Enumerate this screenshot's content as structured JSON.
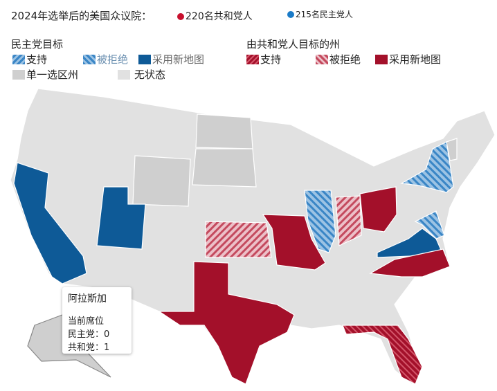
{
  "header": {
    "title": "2024年选举后的美国众议院：",
    "rep_count": "220名共和党人",
    "dem_count": "215名民主党人"
  },
  "legend": {
    "dem_title": "民主党目标",
    "dem_items": [
      "支持",
      "被拒绝",
      "采用新地图"
    ],
    "rep_title": "由共和党人目标的州",
    "rep_items": [
      "支持",
      "被拒绝",
      "采用新地图"
    ],
    "other_items": [
      "单一选区州",
      "无状态"
    ]
  },
  "colors": {
    "rep": "#a3102a",
    "dem": "#0e5a97",
    "dem_light": "#5b9bd0",
    "rep_light": "#d98a97",
    "single": "#cfcfcf",
    "none": "#e1e1e1"
  },
  "tooltip": {
    "state": "阿拉斯加",
    "heading": "当前席位",
    "dem": "民主党：0",
    "rep": "共和党：1"
  }
}
